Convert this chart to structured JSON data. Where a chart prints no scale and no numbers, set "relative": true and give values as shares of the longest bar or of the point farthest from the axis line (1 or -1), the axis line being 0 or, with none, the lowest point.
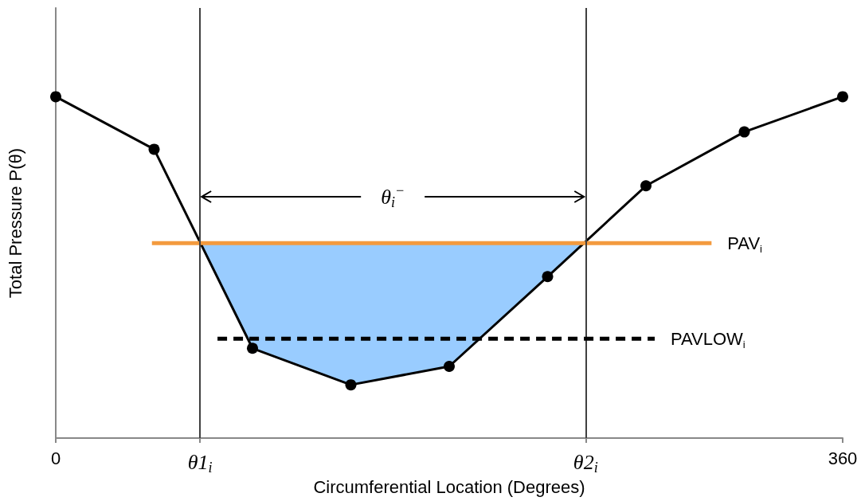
{
  "chart_data": {
    "type": "line",
    "relative": true,
    "xlabel": "Circumferential Location (Degrees)",
    "ylabel": "Total Pressure P(θ)",
    "xlim": [
      0,
      360
    ],
    "xticks": [
      0,
      {
        "value": 66,
        "label": "θ1$_{i}$"
      },
      {
        "value": 242.4,
        "label": "θ2$_{i}$"
      },
      360
    ],
    "grid": false,
    "legend": false,
    "marker": "circle",
    "line_style": "solid",
    "series": [
      {
        "color": "#000000",
        "x": [
          0,
          45,
          90,
          135,
          180,
          225,
          270,
          315,
          360
        ],
        "values": [
          1,
          0.846,
          0.263,
          0.156,
          0.21,
          0.473,
          0.739,
          0.897,
          1
        ]
      },
      {
        "name": "PAV$_{i}$",
        "color": "#f39a3e",
        "marker": "none",
        "x": [
          44,
          300
        ],
        "values": [
          0.571,
          0.571
        ]
      },
      {
        "name": "PAVLOW$_{i}$",
        "color": "#000000",
        "marker": "none",
        "line_style": "dashed",
        "x": [
          74,
          274
        ],
        "values": [
          0.291,
          0.291
        ]
      },
      {
        "type": "area",
        "color": "#99ccff",
        "marker": "none",
        "x": [
          66,
          90,
          135,
          180,
          225,
          242.4
        ],
        "values": [
          0.571,
          0.263,
          0.156,
          0.21,
          0.473,
          0.571
        ]
      }
    ],
    "ref_lines": [
      {
        "axis": "x",
        "value": 66,
        "label": null,
        "color": "#404040"
      },
      {
        "axis": "x",
        "value": 242.4,
        "label": null,
        "color": "#404040"
      }
    ],
    "annotations": [
      "θ$_{i}$$^{−}$"
    ]
  }
}
